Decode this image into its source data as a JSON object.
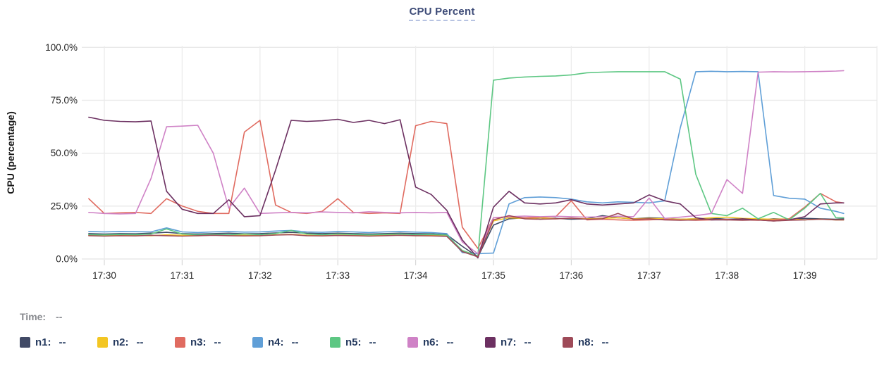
{
  "header": {
    "title": "CPU Percent"
  },
  "time_row": {
    "label": "Time:",
    "value": "--"
  },
  "legend": {
    "items": [
      {
        "label": "n1:",
        "value": "--",
        "color": "#414a66"
      },
      {
        "label": "n2:",
        "value": "--",
        "color": "#f3c623"
      },
      {
        "label": "n3:",
        "value": "--",
        "color": "#e06b60"
      },
      {
        "label": "n4:",
        "value": "--",
        "color": "#609fd7"
      },
      {
        "label": "n5:",
        "value": "--",
        "color": "#5dc783"
      },
      {
        "label": "n6:",
        "value": "--",
        "color": "#cf82c6"
      },
      {
        "label": "n7:",
        "value": "--",
        "color": "#6c3061"
      },
      {
        "label": "n8:",
        "value": "--",
        "color": "#9e4a58"
      }
    ]
  },
  "chart_data": {
    "type": "line",
    "title": "CPU Percent",
    "xlabel": "",
    "ylabel": "CPU (percentage)",
    "ylim": [
      0,
      100
    ],
    "grid": true,
    "legend_position": "bottom",
    "y_ticks": [
      {
        "value": 0,
        "label": "0.0%"
      },
      {
        "value": 25,
        "label": "25.0%"
      },
      {
        "value": 50,
        "label": "50.0%"
      },
      {
        "value": 75,
        "label": "75.0%"
      },
      {
        "value": 100,
        "label": "100.0%"
      }
    ],
    "x_ticks": [
      {
        "t": 0,
        "label": "17:30"
      },
      {
        "t": 1,
        "label": "17:31"
      },
      {
        "t": 2,
        "label": "17:32"
      },
      {
        "t": 3,
        "label": "17:33"
      },
      {
        "t": 4,
        "label": "17:34"
      },
      {
        "t": 5,
        "label": "17:35"
      },
      {
        "t": 6,
        "label": "17:36"
      },
      {
        "t": 7,
        "label": "17:37"
      },
      {
        "t": 8,
        "label": "17:38"
      },
      {
        "t": 9,
        "label": "17:39"
      }
    ],
    "x_unit": "minutes after 17:30",
    "xlim": [
      -0.28,
      9.95
    ],
    "x": [
      -0.2,
      0,
      0.2,
      0.4,
      0.6,
      0.8,
      1,
      1.2,
      1.4,
      1.6,
      1.8,
      2,
      2.2,
      2.4,
      2.6,
      2.8,
      3,
      3.2,
      3.4,
      3.6,
      3.8,
      4,
      4.2,
      4.4,
      4.6,
      4.8,
      5,
      5.2,
      5.4,
      5.6,
      5.8,
      6,
      6.2,
      6.4,
      6.6,
      6.8,
      7,
      7.2,
      7.4,
      7.6,
      7.8,
      8,
      8.2,
      8.4,
      8.6,
      8.8,
      9,
      9.2,
      9.4,
      9.5
    ],
    "series": [
      {
        "name": "n1",
        "color": "#414a66",
        "values": [
          12,
          11.8,
          12,
          11.9,
          12.2,
          12.6,
          12,
          11.8,
          12,
          12.2,
          11.9,
          12,
          12.3,
          12.6,
          12.2,
          12,
          12.2,
          12,
          11.8,
          12,
          12.2,
          12,
          11.9,
          11.5,
          6,
          1,
          16,
          19,
          19.5,
          18.8,
          19.2,
          18.8,
          19,
          20.5,
          19.5,
          19,
          19.5,
          19.2,
          18.8,
          19,
          19.3,
          18.8,
          19,
          18.5,
          19,
          18.8,
          19.2,
          19,
          18.8,
          19
        ]
      },
      {
        "name": "n2",
        "color": "#f3c623",
        "values": [
          11.2,
          11,
          11.3,
          11.1,
          11,
          11.4,
          11.2,
          11,
          11.3,
          11.1,
          11.2,
          11,
          11.4,
          11.6,
          11.2,
          11,
          11.2,
          11.1,
          11,
          11.3,
          11.2,
          11,
          11.2,
          11,
          4,
          1.5,
          18,
          19.5,
          19.2,
          19.5,
          19,
          19.3,
          19,
          19.2,
          19.5,
          19,
          19.2,
          19,
          18.8,
          19,
          19.5,
          19.8,
          19.2,
          19,
          18.8,
          19,
          18.5,
          18.8,
          18.5,
          18.5
        ]
      },
      {
        "name": "n3",
        "color": "#e06b60",
        "values": [
          28.5,
          21.5,
          21.8,
          22,
          21.5,
          28.5,
          25,
          22.5,
          21.5,
          21.5,
          60,
          65.5,
          25.5,
          22,
          21.5,
          22.5,
          28.5,
          22,
          21.5,
          21.8,
          21.5,
          63,
          65,
          64,
          15,
          5,
          19.5,
          20,
          19.5,
          19.8,
          20,
          27.5,
          18.5,
          18.8,
          18.5,
          18.3,
          18.5,
          18.8,
          18.5,
          18.3,
          18.5,
          18.8,
          18.5,
          18.3,
          18.5,
          19,
          24.5,
          31,
          27,
          26.5
        ]
      },
      {
        "name": "n4",
        "color": "#609fd7",
        "values": [
          13,
          12.8,
          13,
          12.9,
          12.8,
          14.7,
          12.8,
          12.5,
          12.8,
          13,
          12.7,
          12.8,
          13.2,
          13.5,
          12.8,
          12.6,
          13,
          12.8,
          12.5,
          12.8,
          13,
          12.7,
          12.5,
          12,
          3,
          2.5,
          2.8,
          26,
          29,
          29.3,
          29,
          28.3,
          27,
          26.5,
          27,
          26.8,
          26.5,
          27.5,
          62,
          88.5,
          88.7,
          88.5,
          88.6,
          88.5,
          30,
          28.7,
          28.3,
          24,
          22.5,
          21.5
        ]
      },
      {
        "name": "n5",
        "color": "#5dc783",
        "values": [
          11.5,
          11.4,
          11.6,
          11.5,
          11.8,
          14.2,
          11.8,
          11.4,
          11.6,
          11.5,
          11.8,
          11.5,
          12,
          13.5,
          11.8,
          11.5,
          11.8,
          11.6,
          11.4,
          11.6,
          11.8,
          11.5,
          11.6,
          11.3,
          4,
          1.5,
          84.5,
          85.5,
          86,
          86.3,
          86.5,
          87,
          88,
          88.3,
          88.5,
          88.5,
          88.5,
          88.5,
          85,
          40,
          21.5,
          20.5,
          24,
          19,
          22,
          18.5,
          24,
          31,
          19.5,
          19.5
        ]
      },
      {
        "name": "n6",
        "color": "#cf82c6",
        "values": [
          22,
          21.5,
          21.3,
          21.5,
          38,
          62.5,
          62.8,
          63.2,
          50,
          24,
          33.5,
          21.5,
          21.8,
          22,
          21.8,
          22.2,
          22,
          21.8,
          22.3,
          22,
          21.8,
          22,
          21.8,
          22,
          8,
          2.5,
          19.5,
          20,
          20.3,
          20,
          20.2,
          20,
          19.8,
          20,
          20.2,
          20,
          28.8,
          19.2,
          19.8,
          20.5,
          21.5,
          37.5,
          31,
          88.3,
          88.5,
          88.4,
          88.5,
          88.6,
          88.8,
          89
        ]
      },
      {
        "name": "n7",
        "color": "#6c3061",
        "values": [
          67,
          65.5,
          65,
          64.8,
          65.2,
          32,
          23.5,
          21.5,
          21.5,
          28,
          20,
          20.5,
          42,
          65.5,
          65,
          65.3,
          66,
          64.5,
          65.5,
          64,
          65.8,
          34,
          30.5,
          23,
          9,
          0.5,
          24.5,
          32,
          26.5,
          26,
          26.5,
          28,
          26,
          25.5,
          26,
          26.5,
          30.3,
          27.5,
          26,
          19.5,
          18.5,
          18.5,
          19,
          18.5,
          18,
          18.5,
          20,
          26,
          26.5,
          26.5
        ]
      },
      {
        "name": "n8",
        "color": "#9e4a58",
        "values": [
          11,
          10.8,
          11,
          10.9,
          11.2,
          11,
          10.8,
          11,
          11.2,
          11,
          10.9,
          11,
          11.3,
          11.5,
          11,
          10.9,
          11.1,
          11,
          10.8,
          11,
          11.2,
          11,
          10.9,
          10.7,
          3.5,
          1,
          18.5,
          20.5,
          19,
          18.8,
          19,
          19.3,
          18.8,
          19,
          21.5,
          18.8,
          19,
          18.5,
          18.3,
          18.5,
          18.8,
          18.5,
          18.3,
          18.5,
          18,
          18.3,
          18.5,
          18.8,
          18.5,
          18.5
        ]
      }
    ]
  }
}
